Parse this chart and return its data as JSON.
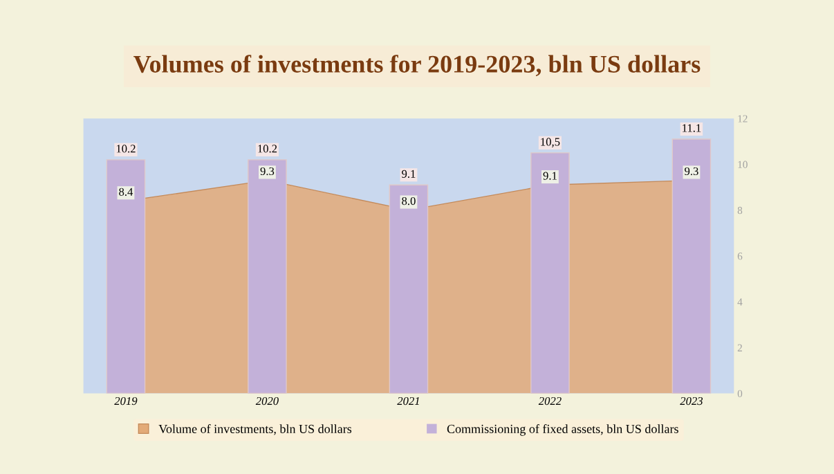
{
  "chart_data": {
    "type": "bar",
    "title": "Volumes of investments for 2019-2023, bln US dollars",
    "categories": [
      "2019",
      "2020",
      "2021",
      "2022",
      "2023"
    ],
    "series": [
      {
        "name": "Volume of investments, bln US dollars",
        "type": "area",
        "color": "#e3aa78",
        "values": [
          8.4,
          9.3,
          8.0,
          9.1,
          9.3
        ],
        "value_labels": [
          "8.4",
          "9.3",
          "8.0",
          "9.1",
          "9.3"
        ]
      },
      {
        "name": "Commissioning of fixed assets, bln US dollars",
        "color": "#c3b1d9",
        "values": [
          10.2,
          10.2,
          9.1,
          10.5,
          11.1
        ],
        "value_labels": [
          "10.2",
          "10.2",
          "9.1",
          "10,5",
          "11.1"
        ]
      }
    ],
    "ylim": [
      0,
      12
    ],
    "yticks": [
      0,
      2,
      4,
      6,
      8,
      10,
      12
    ],
    "grid": false,
    "legend": "bottom"
  }
}
